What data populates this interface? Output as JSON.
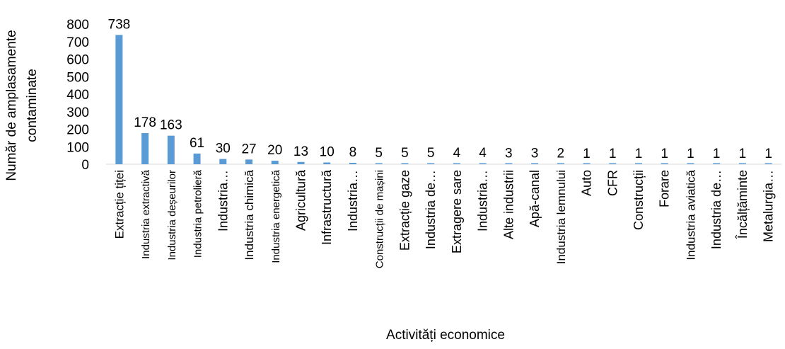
{
  "chart_data": {
    "type": "bar",
    "xlabel": "Activități economice",
    "ylabel": [
      "Număr de amplasamente",
      "contaminate"
    ],
    "ylim": [
      0,
      800
    ],
    "yticks": [
      0,
      100,
      200,
      300,
      400,
      500,
      600,
      700,
      800
    ],
    "grid": false,
    "bar_color": "#5b9bd5",
    "categories": [
      "Extracție țiței",
      "Industria extractivă",
      "Industria deșeurilor",
      "Industria petrolieră",
      "Industria…",
      "Industria chimică",
      "Industria energetică",
      "Agricultură",
      "Infrastructură",
      "Industria…",
      "Construcții de mașini",
      "Extracție gaze",
      "Industria de…",
      "Extragere sare",
      "Industria…",
      "Alte industrii",
      "Apă-canal",
      "Industria lemnului",
      "Auto",
      "CFR",
      "Construcții",
      "Forare",
      "Industria aviatică",
      "Industria de…",
      "Încălțăminte",
      "Metalurgia…"
    ],
    "values": [
      738,
      178,
      163,
      61,
      30,
      27,
      20,
      13,
      10,
      8,
      5,
      5,
      5,
      4,
      4,
      3,
      3,
      2,
      1,
      1,
      1,
      1,
      1,
      1,
      1,
      1
    ],
    "data_labels": [
      "738",
      "178",
      "163",
      "61",
      "30",
      "27",
      "20",
      "13",
      "10",
      "8",
      "5",
      "5",
      "5",
      "4",
      "4",
      "3",
      "3",
      "2",
      "1",
      "1",
      "1",
      "1",
      "1",
      "1",
      "1",
      "1"
    ]
  }
}
